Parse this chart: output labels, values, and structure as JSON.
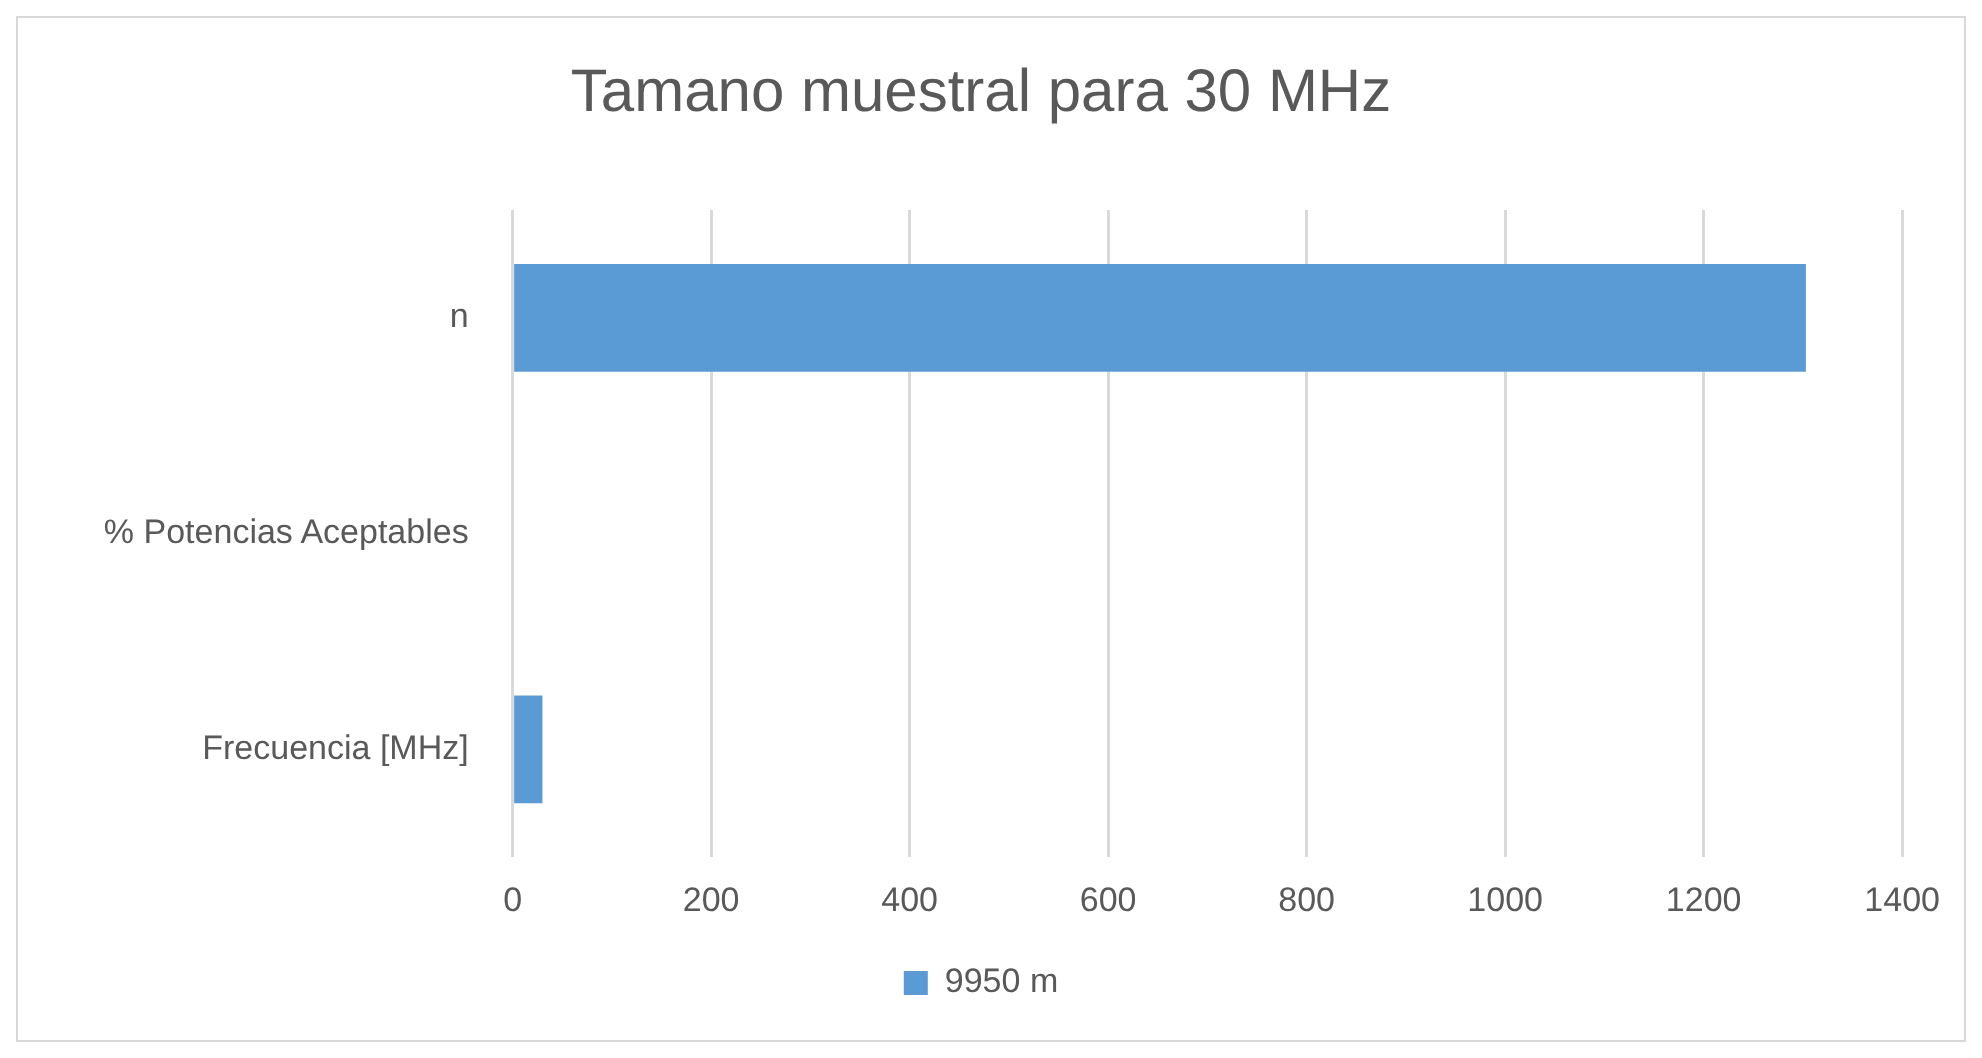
{
  "chart_data": {
    "type": "bar",
    "title": "Tamano muestral para 30 MHz",
    "orientation": "horizontal",
    "categories": [
      "n",
      "% Potencias Aceptables",
      "Frecuencia [MHz]"
    ],
    "series": [
      {
        "name": "9950 m",
        "color": "#5b9bd5",
        "values": [
          1303,
          0,
          30
        ]
      }
    ],
    "xlim": [
      0,
      1400
    ],
    "xticks": [
      0,
      200,
      400,
      600,
      800,
      1000,
      1200,
      1400
    ],
    "grid": "x",
    "legend": "bottom"
  }
}
